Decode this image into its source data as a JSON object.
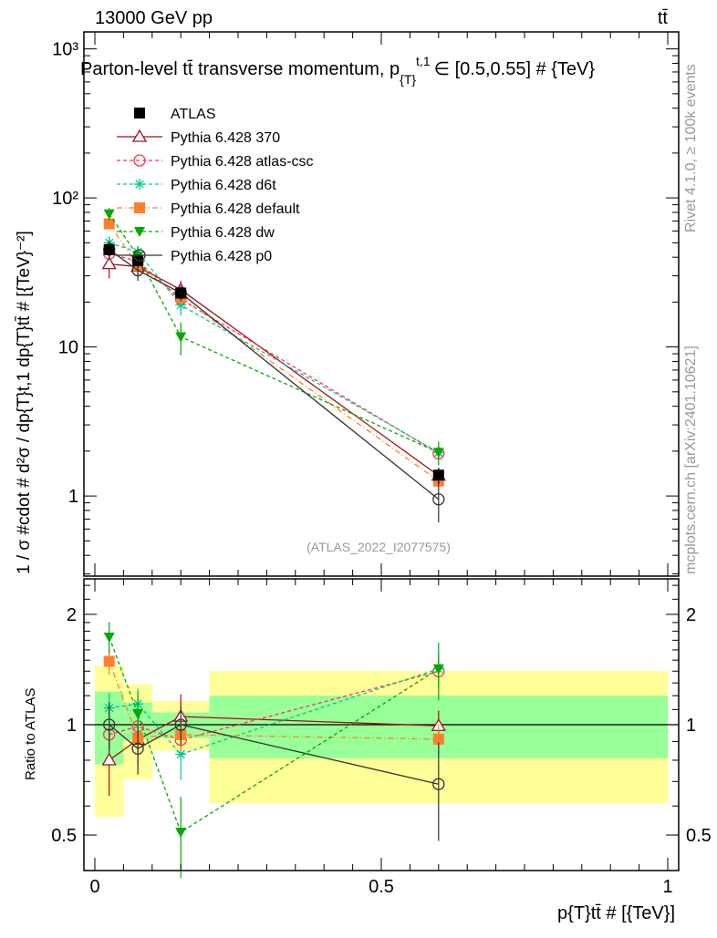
{
  "chart_data": {
    "type": "line",
    "header_left": "13000 GeV pp",
    "header_right": "tt̄",
    "title": "Parton-level tt̄ transverse momentum, p",
    "title_sub": "{T}",
    "title_sup": "t,1",
    "title_rest": "∈ [0.5,0.55] # {TeV}",
    "ylabel": "1 / σ #cdot # d²σ / dp{T}t,1 dp{T}tt̄ # [{TeV}⁻²]",
    "ratio_ylabel": "Ratio to ATLAS",
    "xlabel": "p{T}tt̄ # [{TeV}]",
    "analysis_label": "(ATLAS_2022_I2077575)",
    "side_label_top": "Rivet 4.1.0, ≥ 100k events",
    "side_label_bottom": "mcplots.cern.ch [arXiv:2401.10621]",
    "xlim": [
      0,
      1.0
    ],
    "ylim": [
      0.29,
      1300
    ],
    "yscale": "log",
    "ratio_ylim": [
      0.4,
      2.5
    ],
    "x_ticks": [
      {
        "v": 0,
        "label": "0"
      },
      {
        "v": 0.5,
        "label": "0.5"
      },
      {
        "v": 1,
        "label": "1"
      }
    ],
    "y_ticks": [
      {
        "v": 1000,
        "label": "10³"
      },
      {
        "v": 100,
        "label": "10²"
      },
      {
        "v": 10,
        "label": "10"
      },
      {
        "v": 1,
        "label": "1"
      }
    ],
    "ratio_ticks": [
      {
        "v": 2,
        "label": "2"
      },
      {
        "v": 1,
        "label": "1"
      },
      {
        "v": 0.5,
        "label": "0.5"
      }
    ],
    "bins": [
      [
        0,
        0.05
      ],
      [
        0.05,
        0.1
      ],
      [
        0.1,
        0.2
      ],
      [
        0.2,
        1.0
      ]
    ],
    "x": [
      0.025,
      0.075,
      0.15,
      0.6
    ],
    "data": {
      "name": "ATLAS",
      "values": [
        45,
        38,
        23,
        1.38
      ],
      "rel_err": [
        0.1,
        0.1,
        0.08,
        0.12
      ],
      "band_stat": [
        [
          0.78,
          1.23
        ],
        [
          0.91,
          1.15
        ],
        [
          0.92,
          1.08
        ],
        [
          0.81,
          1.2
        ]
      ],
      "band_total": [
        [
          0.56,
          1.45
        ],
        [
          0.71,
          1.29
        ],
        [
          0.85,
          1.16
        ],
        [
          0.61,
          1.4
        ]
      ]
    },
    "series": [
      {
        "name": "Pythia 6.428 370",
        "color": "#a0101f",
        "dash": "",
        "marker": "tri-open",
        "values": [
          36,
          34.6,
          24.2,
          1.37
        ],
        "rel_err": [
          0.2,
          0.15,
          0.15,
          0.1
        ]
      },
      {
        "name": "Pythia 6.428 atlas-csc",
        "color": "#ff3355",
        "dash": "4,3",
        "marker": "circle-open",
        "values": [
          42.3,
          37.6,
          20.9,
          1.93
        ],
        "rel_err": [
          0.05,
          0.05,
          0.1,
          0.1
        ]
      },
      {
        "name": "Pythia 6.428 d6t",
        "color": "#00c896",
        "dash": "4,3",
        "marker": "star",
        "values": [
          50,
          43.3,
          19.1,
          1.96
        ],
        "rel_err": [
          0.1,
          0.1,
          0.15,
          0.1
        ]
      },
      {
        "name": "Pythia 6.428 default",
        "color": "#ff7f2a",
        "dash": "6,3,1,3",
        "marker": "square",
        "values": [
          67,
          35,
          21.6,
          1.26
        ],
        "rel_err": [
          0.08,
          0.1,
          0.1,
          0.1
        ]
      },
      {
        "name": "Pythia 6.428 dw",
        "color": "#00aa00",
        "dash": "4,3",
        "marker": "tri-down",
        "values": [
          78,
          40.7,
          11.7,
          1.96
        ],
        "rel_err": [
          0.1,
          0.15,
          0.25,
          0.18
        ]
      },
      {
        "name": "Pythia 6.428 p0",
        "color": "#333333",
        "dash": "",
        "marker": "circle-open",
        "values": [
          45,
          32.7,
          23,
          0.95
        ],
        "rel_err": [
          0.15,
          0.15,
          0.12,
          0.3
        ]
      }
    ],
    "colors": {
      "band_total": "#ffff99",
      "band_stat": "#99ff99",
      "data": "#000000"
    }
  }
}
